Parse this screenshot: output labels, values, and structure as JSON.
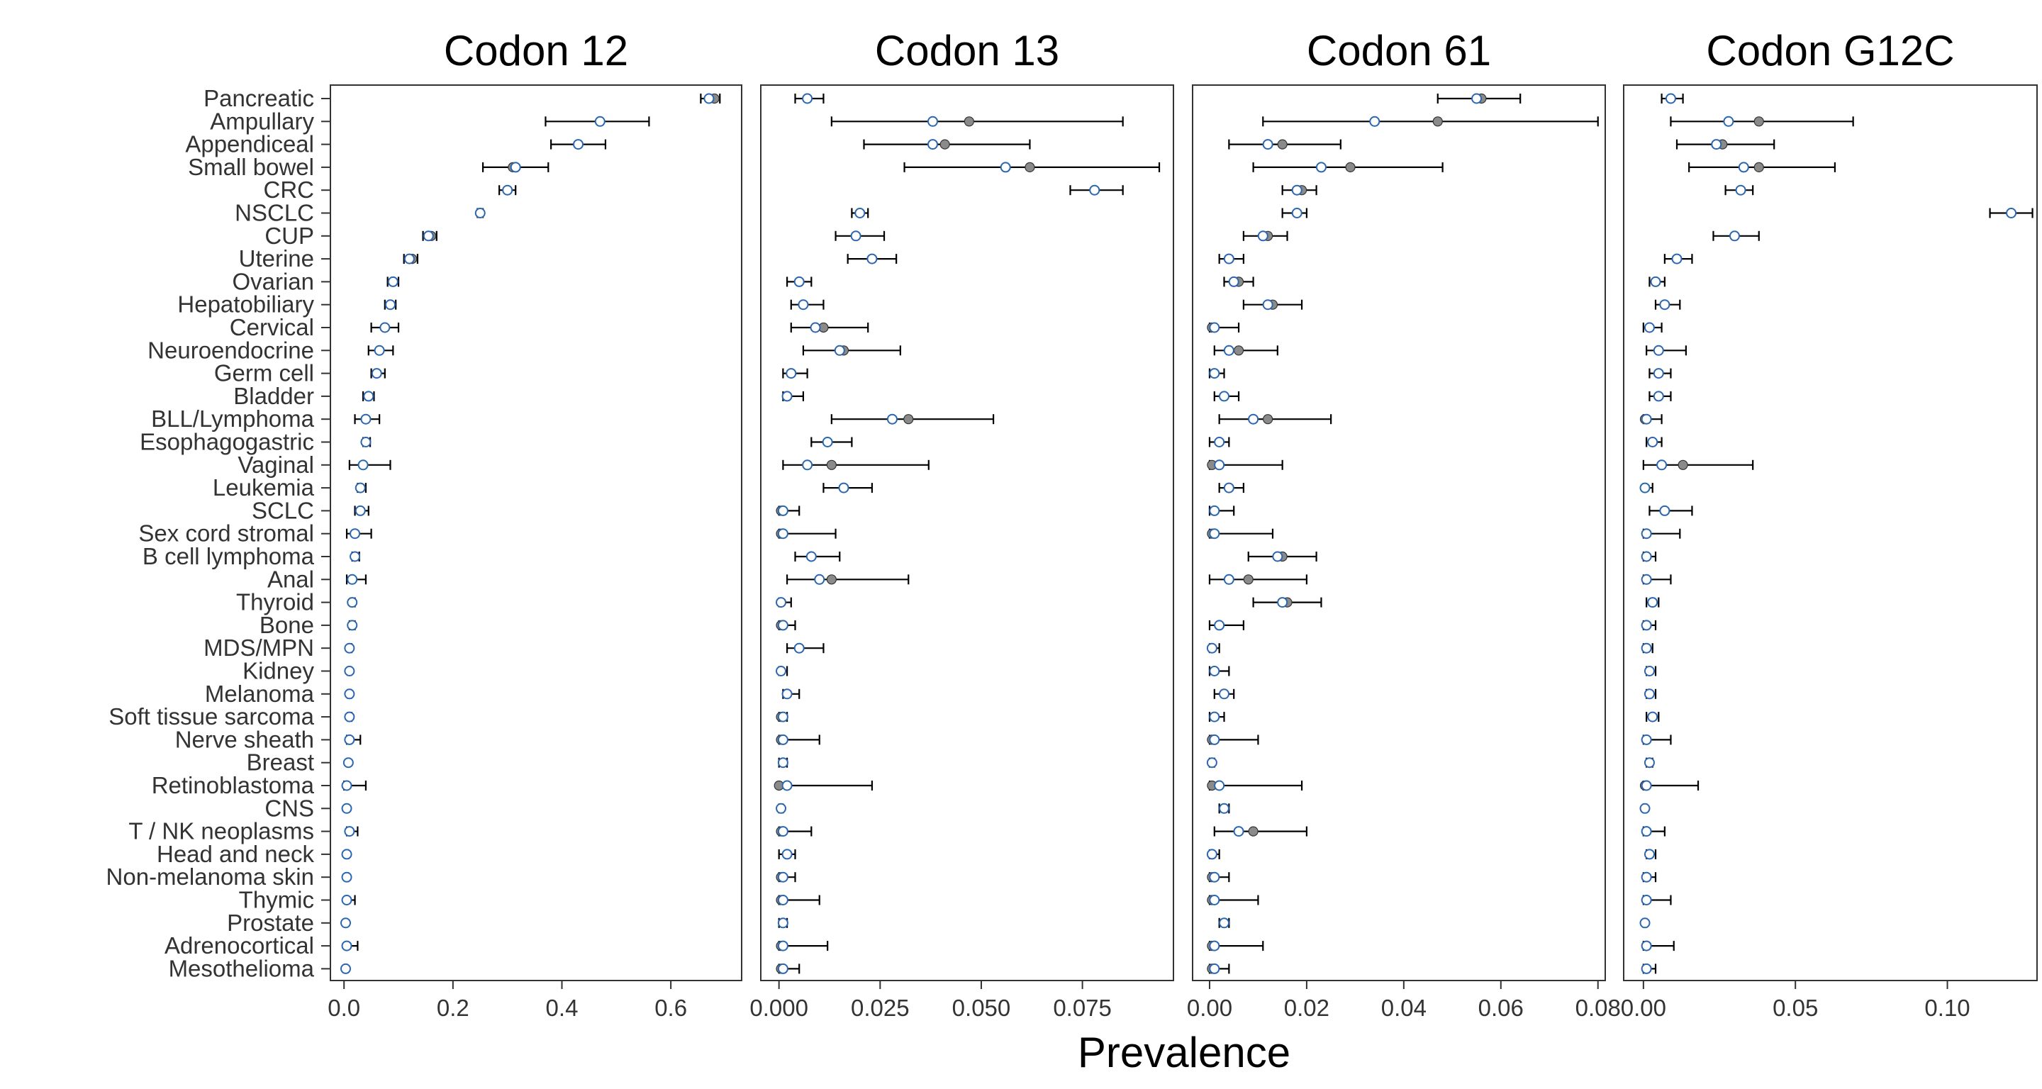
{
  "figure": {
    "xlabel": "Prevalence"
  },
  "chart_data": {
    "type": "scatter",
    "xlabel": "Prevalence",
    "legend": "none",
    "grid": false,
    "categories": [
      "Pancreatic",
      "Ampullary",
      "Appendiceal",
      "Small bowel",
      "CRC",
      "NSCLC",
      "CUP",
      "Uterine",
      "Ovarian",
      "Hepatobiliary",
      "Cervical",
      "Neuroendocrine",
      "Germ cell",
      "Bladder",
      "BLL/Lymphoma",
      "Esophagogastric",
      "Vaginal",
      "Leukemia",
      "SCLC",
      "Sex cord stromal",
      "B cell lymphoma",
      "Anal",
      "Thyroid",
      "Bone",
      "MDS/MPN",
      "Kidney",
      "Melanoma",
      "Soft tissue sarcoma",
      "Nerve sheath",
      "Breast",
      "Retinoblastoma",
      "CNS",
      "T / NK neoplasms",
      "Head and neck",
      "Non-melanoma skin",
      "Thymic",
      "Prostate",
      "Adrenocortical",
      "Mesothelioma"
    ],
    "colors": {
      "observed": "#8a8a8a",
      "estimate": "#2b66b0",
      "errorbar": "#000000"
    },
    "panels": [
      {
        "title": "Codon 12",
        "xlim": [
          -0.025,
          0.73
        ],
        "ticks": [
          0,
          0.2,
          0.4,
          0.6
        ],
        "tick_labels": [
          "0.0",
          "0.2",
          "0.4",
          "0.6"
        ],
        "obs": [
          0.68,
          0.47,
          0.43,
          0.31,
          0.3,
          0.25,
          0.16,
          0.125,
          0.09,
          0.085,
          0.075,
          0.065,
          0.06,
          0.045,
          0.04,
          0.04,
          0.035,
          0.03,
          0.03,
          0.02,
          0.02,
          0.015,
          0.015,
          0.015,
          0.01,
          0.01,
          0.01,
          0.01,
          0.01,
          0.008,
          0.005,
          0.005,
          0.01,
          0.005,
          0.005,
          0.005,
          0.003,
          0.005,
          0.003
        ],
        "est": [
          0.67,
          0.47,
          0.43,
          0.315,
          0.3,
          0.25,
          0.155,
          0.12,
          0.09,
          0.085,
          0.075,
          0.065,
          0.06,
          0.045,
          0.04,
          0.04,
          0.035,
          0.03,
          0.03,
          0.02,
          0.02,
          0.015,
          0.015,
          0.015,
          0.01,
          0.01,
          0.01,
          0.01,
          0.01,
          0.008,
          0.005,
          0.005,
          0.01,
          0.005,
          0.005,
          0.005,
          0.003,
          0.005,
          0.003
        ],
        "lo": [
          0.655,
          0.37,
          0.38,
          0.255,
          0.285,
          0.245,
          0.145,
          0.11,
          0.08,
          0.075,
          0.05,
          0.045,
          0.05,
          0.035,
          0.02,
          0.035,
          0.01,
          0.025,
          0.02,
          0.005,
          0.015,
          0.005,
          0.012,
          0.01,
          0.008,
          0.007,
          0.007,
          0.007,
          0.005,
          0.006,
          0.0,
          0.004,
          0.005,
          0.003,
          0.003,
          0.002,
          0.002,
          0.003,
          0.002
        ],
        "hi": [
          0.69,
          0.56,
          0.48,
          0.375,
          0.315,
          0.255,
          0.17,
          0.135,
          0.1,
          0.095,
          0.1,
          0.09,
          0.075,
          0.055,
          0.065,
          0.048,
          0.085,
          0.04,
          0.045,
          0.05,
          0.028,
          0.04,
          0.02,
          0.02,
          0.014,
          0.013,
          0.013,
          0.014,
          0.03,
          0.01,
          0.04,
          0.007,
          0.025,
          0.008,
          0.008,
          0.02,
          0.004,
          0.025,
          0.005
        ]
      },
      {
        "title": "Codon 13",
        "xlim": [
          -0.0045,
          0.0975
        ],
        "ticks": [
          0,
          0.025,
          0.05,
          0.075
        ],
        "tick_labels": [
          "0.000",
          "0.025",
          "0.050",
          "0.075"
        ],
        "obs": [
          0.007,
          0.047,
          0.041,
          0.062,
          0.078,
          0.02,
          0.019,
          0.023,
          0.005,
          0.006,
          0.011,
          0.016,
          0.003,
          0.002,
          0.032,
          0.012,
          0.013,
          0.016,
          0.0005,
          0.0005,
          0.008,
          0.013,
          0.0005,
          0.0005,
          0.005,
          0.0005,
          0.002,
          0.0005,
          0.0005,
          0.001,
          0.0,
          0.0005,
          0.0005,
          0.002,
          0.0005,
          0.0005,
          0.001,
          0.0005,
          0.0005
        ],
        "est": [
          0.007,
          0.038,
          0.038,
          0.056,
          0.078,
          0.02,
          0.019,
          0.023,
          0.005,
          0.006,
          0.009,
          0.015,
          0.003,
          0.002,
          0.028,
          0.012,
          0.007,
          0.016,
          0.001,
          0.001,
          0.008,
          0.01,
          0.0005,
          0.001,
          0.005,
          0.0005,
          0.002,
          0.001,
          0.001,
          0.001,
          0.002,
          0.0005,
          0.001,
          0.002,
          0.001,
          0.001,
          0.001,
          0.001,
          0.001
        ],
        "lo": [
          0.004,
          0.013,
          0.021,
          0.031,
          0.072,
          0.018,
          0.014,
          0.017,
          0.002,
          0.003,
          0.003,
          0.006,
          0.001,
          0.001,
          0.013,
          0.008,
          0.001,
          0.011,
          0.0,
          0.0,
          0.004,
          0.002,
          0.0,
          0.0,
          0.002,
          0.0,
          0.001,
          0.0,
          0.0,
          0.0,
          0.0,
          0.0,
          0.0,
          0.0,
          0.0,
          0.0,
          0.0,
          0.0,
          0.0
        ],
        "hi": [
          0.011,
          0.085,
          0.062,
          0.094,
          0.085,
          0.022,
          0.026,
          0.029,
          0.008,
          0.011,
          0.022,
          0.03,
          0.007,
          0.006,
          0.053,
          0.018,
          0.037,
          0.023,
          0.005,
          0.014,
          0.015,
          0.032,
          0.003,
          0.004,
          0.011,
          0.002,
          0.005,
          0.002,
          0.01,
          0.002,
          0.023,
          0.001,
          0.008,
          0.004,
          0.004,
          0.01,
          0.002,
          0.012,
          0.005
        ]
      },
      {
        "title": "Codon 61",
        "xlim": [
          -0.0035,
          0.0815
        ],
        "ticks": [
          0,
          0.02,
          0.04,
          0.06,
          0.08
        ],
        "tick_labels": [
          "0.00",
          "0.02",
          "0.04",
          "0.06",
          "0.08"
        ],
        "obs": [
          0.056,
          0.047,
          0.015,
          0.029,
          0.019,
          0.018,
          0.012,
          0.004,
          0.006,
          0.013,
          0.0005,
          0.006,
          0.001,
          0.003,
          0.012,
          0.002,
          0.0005,
          0.004,
          0.001,
          0.0005,
          0.015,
          0.008,
          0.016,
          0.002,
          0.0005,
          0.001,
          0.003,
          0.001,
          0.0005,
          0.0005,
          0.0005,
          0.003,
          0.009,
          0.0005,
          0.0005,
          0.0005,
          0.003,
          0.0005,
          0.0005
        ],
        "est": [
          0.055,
          0.034,
          0.012,
          0.023,
          0.018,
          0.018,
          0.011,
          0.004,
          0.005,
          0.012,
          0.001,
          0.004,
          0.001,
          0.003,
          0.009,
          0.002,
          0.002,
          0.004,
          0.001,
          0.001,
          0.014,
          0.004,
          0.015,
          0.002,
          0.0005,
          0.001,
          0.003,
          0.001,
          0.001,
          0.0005,
          0.002,
          0.003,
          0.006,
          0.0005,
          0.001,
          0.001,
          0.003,
          0.001,
          0.001
        ],
        "lo": [
          0.047,
          0.011,
          0.004,
          0.009,
          0.015,
          0.015,
          0.007,
          0.002,
          0.003,
          0.007,
          0.0,
          0.001,
          0.0,
          0.001,
          0.002,
          0.0,
          0.0,
          0.002,
          0.0,
          0.0,
          0.008,
          0.0,
          0.009,
          0.0,
          0.0,
          0.0,
          0.001,
          0.0,
          0.0,
          0.0,
          0.0,
          0.002,
          0.001,
          0.0,
          0.0,
          0.0,
          0.002,
          0.0,
          0.0
        ],
        "hi": [
          0.064,
          0.08,
          0.027,
          0.048,
          0.022,
          0.02,
          0.016,
          0.007,
          0.009,
          0.019,
          0.006,
          0.014,
          0.003,
          0.006,
          0.025,
          0.004,
          0.015,
          0.007,
          0.005,
          0.013,
          0.022,
          0.02,
          0.023,
          0.007,
          0.002,
          0.004,
          0.005,
          0.003,
          0.01,
          0.001,
          0.019,
          0.004,
          0.02,
          0.002,
          0.004,
          0.01,
          0.004,
          0.011,
          0.004
        ]
      },
      {
        "title": "Codon G12C",
        "xlim": [
          -0.0065,
          0.1295
        ],
        "ticks": [
          0,
          0.05,
          0.1
        ],
        "tick_labels": [
          "0.00",
          "0.05",
          "0.10"
        ],
        "obs": [
          0.009,
          0.038,
          0.026,
          0.038,
          0.032,
          0.121,
          0.03,
          0.011,
          0.004,
          0.007,
          0.002,
          0.005,
          0.005,
          0.005,
          0.0005,
          0.003,
          0.013,
          0.0005,
          0.007,
          0.001,
          0.001,
          0.001,
          0.003,
          0.001,
          0.001,
          0.002,
          0.002,
          0.003,
          0.001,
          0.002,
          0.0005,
          0.0005,
          0.001,
          0.002,
          0.001,
          0.001,
          0.0005,
          0.001,
          0.001
        ],
        "est": [
          0.009,
          0.028,
          0.024,
          0.033,
          0.032,
          0.121,
          0.03,
          0.011,
          0.004,
          0.007,
          0.002,
          0.005,
          0.005,
          0.005,
          0.001,
          0.003,
          0.006,
          0.0005,
          0.007,
          0.001,
          0.001,
          0.001,
          0.003,
          0.001,
          0.001,
          0.002,
          0.002,
          0.003,
          0.001,
          0.002,
          0.001,
          0.0005,
          0.001,
          0.002,
          0.001,
          0.001,
          0.0005,
          0.001,
          0.001
        ],
        "lo": [
          0.006,
          0.009,
          0.011,
          0.015,
          0.027,
          0.114,
          0.023,
          0.007,
          0.002,
          0.004,
          0.0,
          0.001,
          0.002,
          0.002,
          0.0,
          0.001,
          0.0,
          0.0,
          0.002,
          0.0,
          0.0,
          0.0,
          0.001,
          0.0,
          0.0,
          0.001,
          0.001,
          0.001,
          0.0,
          0.001,
          0.0,
          0.0,
          0.0,
          0.001,
          0.0,
          0.0,
          0.0,
          0.0,
          0.0
        ],
        "hi": [
          0.013,
          0.069,
          0.043,
          0.063,
          0.036,
          0.128,
          0.038,
          0.016,
          0.007,
          0.012,
          0.006,
          0.014,
          0.009,
          0.009,
          0.006,
          0.006,
          0.036,
          0.003,
          0.016,
          0.012,
          0.004,
          0.009,
          0.005,
          0.004,
          0.003,
          0.004,
          0.004,
          0.005,
          0.009,
          0.003,
          0.018,
          0.001,
          0.007,
          0.004,
          0.004,
          0.009,
          0.001,
          0.01,
          0.004
        ]
      }
    ]
  }
}
